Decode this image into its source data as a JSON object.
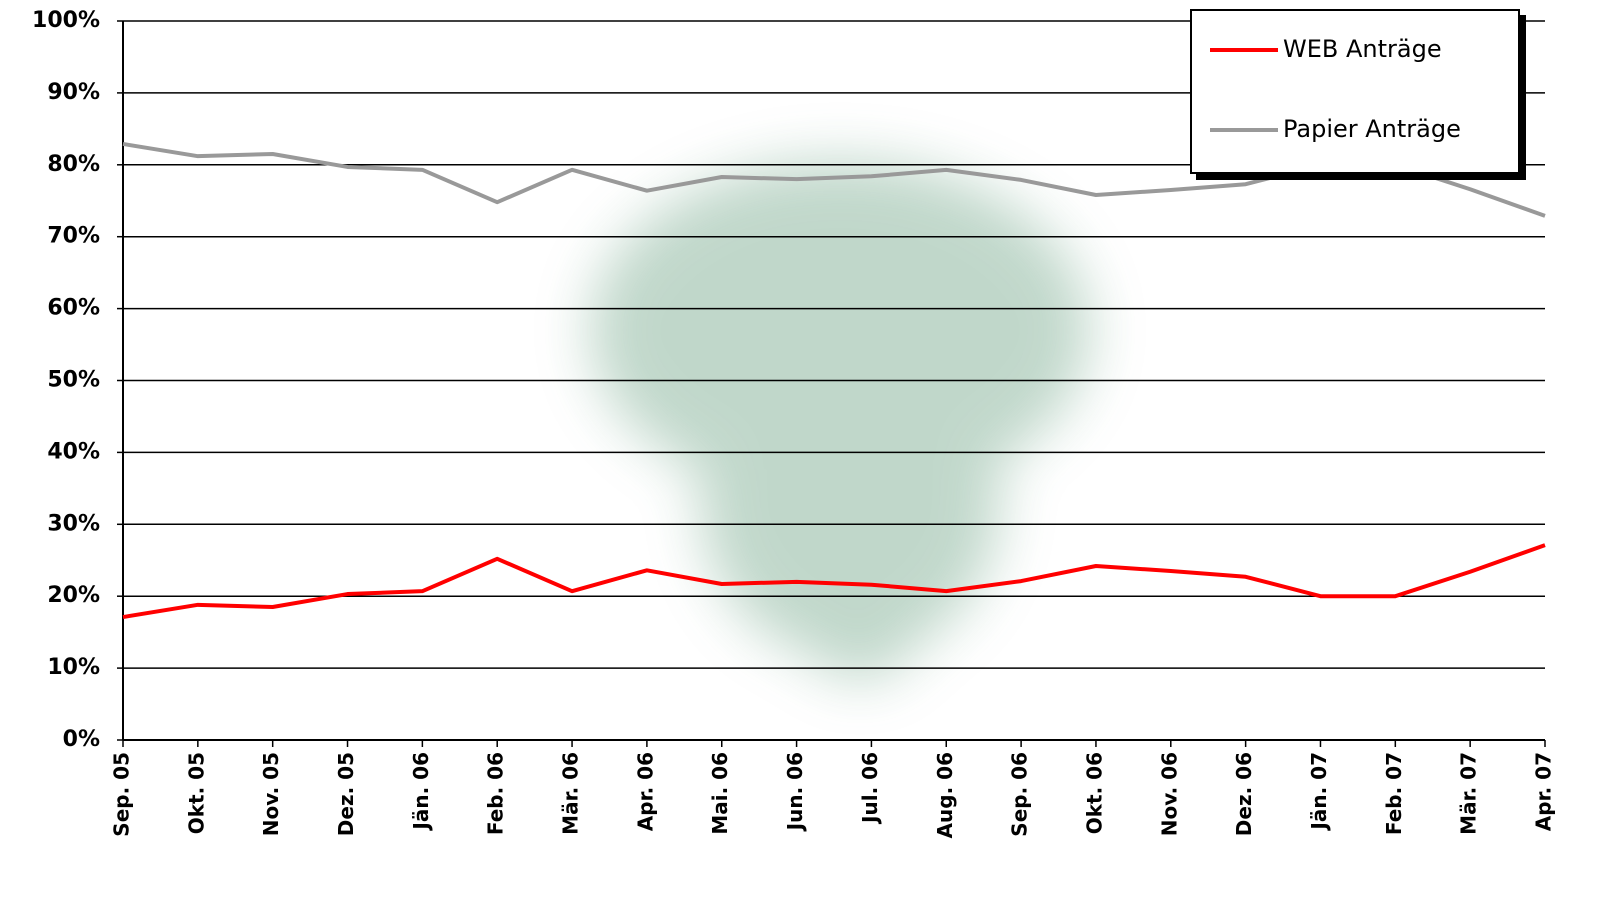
{
  "chart_data": {
    "type": "line",
    "categories": [
      "Sep. 05",
      "Okt. 05",
      "Nov. 05",
      "Dez. 05",
      "Jän. 06",
      "Feb. 06",
      "Mär. 06",
      "Apr. 06",
      "Mai. 06",
      "Jun. 06",
      "Jul. 06",
      "Aug. 06",
      "Sep. 06",
      "Okt. 06",
      "Nov. 06",
      "Dez. 06",
      "Jän. 07",
      "Feb. 07",
      "Mär. 07",
      "Apr. 07"
    ],
    "series": [
      {
        "name": "WEB Anträge",
        "color": "#ff0000",
        "values": [
          17.1,
          18.8,
          18.5,
          20.3,
          20.7,
          25.2,
          20.7,
          23.6,
          21.7,
          22.0,
          21.6,
          20.7,
          22.1,
          24.2,
          23.5,
          22.7,
          20.0,
          20.0,
          23.4,
          27.1
        ]
      },
      {
        "name": "Papier Anträge",
        "color": "#999999",
        "values": [
          82.9,
          81.2,
          81.5,
          79.7,
          79.3,
          74.8,
          79.3,
          76.4,
          78.3,
          78.0,
          78.4,
          79.3,
          77.9,
          75.8,
          76.5,
          77.3,
          80.0,
          80.0,
          76.6,
          72.9
        ]
      }
    ],
    "ylim": [
      0,
      100
    ],
    "yticks": [
      {
        "value": 0,
        "label": "0%"
      },
      {
        "value": 10,
        "label": "10%"
      },
      {
        "value": 20,
        "label": "20%"
      },
      {
        "value": 30,
        "label": "30%"
      },
      {
        "value": 40,
        "label": "40%"
      },
      {
        "value": 50,
        "label": "50%"
      },
      {
        "value": 60,
        "label": "60%"
      },
      {
        "value": 70,
        "label": "70%"
      },
      {
        "value": 80,
        "label": "80%"
      },
      {
        "value": 90,
        "label": "90%"
      },
      {
        "value": 100,
        "label": "100%"
      }
    ],
    "grid": true,
    "legend": "top-right"
  }
}
